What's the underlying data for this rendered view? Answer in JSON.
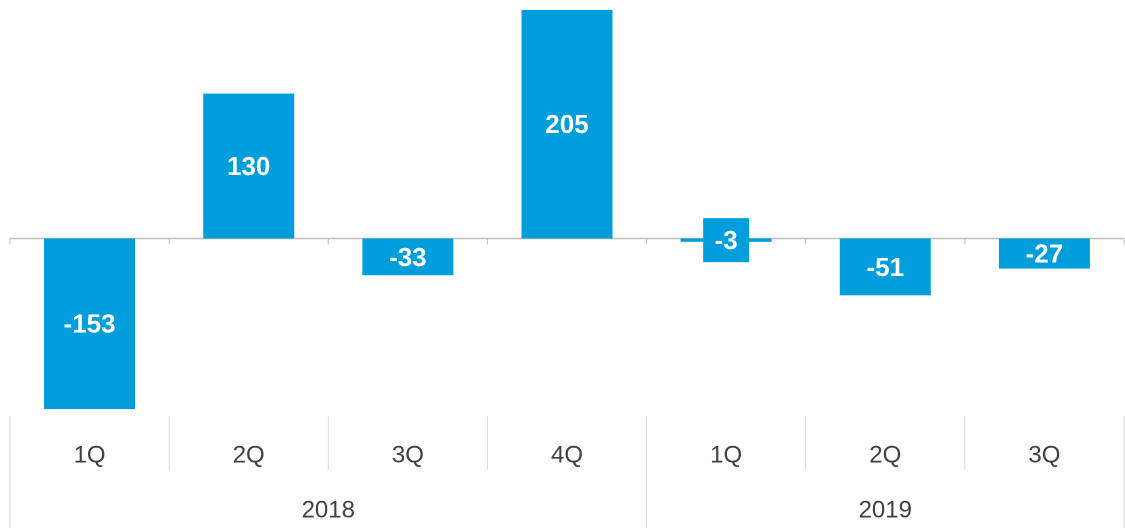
{
  "chart_data": {
    "type": "bar",
    "color": "#009ddb",
    "groups": [
      {
        "name": "2018",
        "categories": [
          "1Q",
          "2Q",
          "3Q",
          "4Q"
        ]
      },
      {
        "name": "2019",
        "categories": [
          "1Q",
          "2Q",
          "3Q"
        ]
      }
    ],
    "values": [
      -153,
      130,
      -33,
      205,
      -3,
      -51,
      -27
    ]
  }
}
